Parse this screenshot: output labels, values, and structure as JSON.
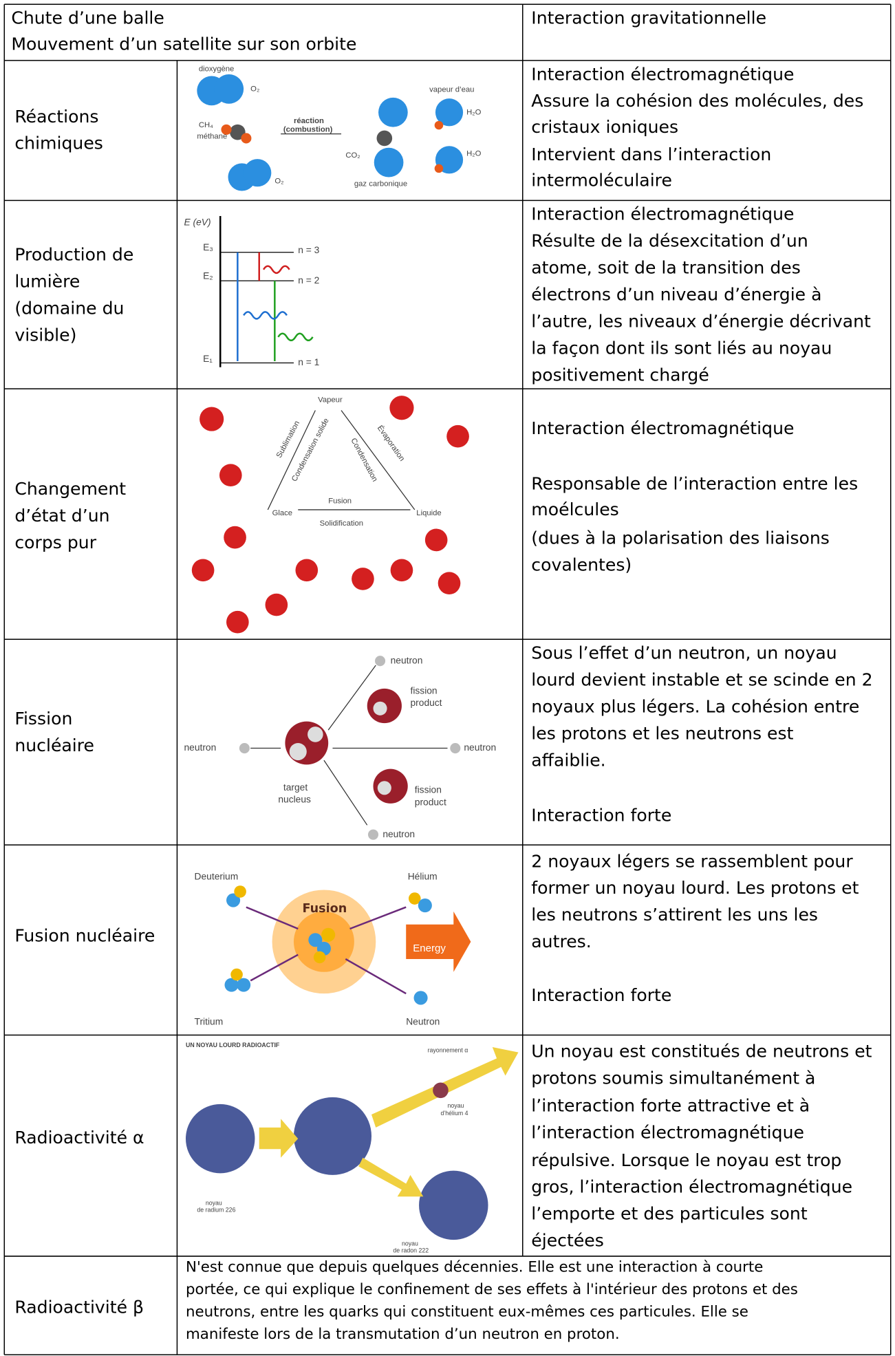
{
  "rows": [
    {
      "subject": [
        "Chute d’une balle",
        "Mouvement d’un satellite sur son orbite"
      ],
      "description": [
        "Interaction gravitationnelle"
      ]
    },
    {
      "subject": [
        "Réactions",
        "chimiques"
      ],
      "figure": [
        "dioxygène",
        "O₂",
        "CH₄",
        "méthane",
        "réaction",
        "(combustion)",
        "CO₂",
        "gaz carbonique",
        "vapeur d’eau",
        "H₂O",
        "H₂O",
        "O₂"
      ],
      "description": [
        "Interaction électromagnétique",
        "Assure la cohésion des molécules, des",
        "cristaux ioniques",
        "Intervient dans l’interaction",
        "intermoléculaire"
      ]
    },
    {
      "subject": [
        "Production de",
        "lumière",
        "(domaine du",
        "visible)"
      ],
      "figure": [
        "E (eV)",
        "E₃",
        "E₂",
        "E₁",
        "n = 3",
        "n = 2",
        "n = 1"
      ],
      "description": [
        "Interaction électromagnétique",
        "Résulte de la désexcitation d’un",
        "atome, soit de la transition des",
        "électrons d’un niveau d’énergie à",
        "l’autre, les niveaux d’énergie décrivant",
        "la façon dont ils sont liés au noyau",
        "positivement chargé"
      ]
    },
    {
      "subject": [
        "Changement",
        "d’état d’un",
        "corps pur"
      ],
      "figure": [
        "Vapeur",
        "Sublimation",
        "Condensation solide",
        "Condensation",
        "Évaporation",
        "Fusion",
        "Solidification",
        "Glace",
        "Liquide"
      ],
      "description": [
        "Interaction électromagnétique",
        "Responsable de l’interaction entre les",
        "moélcules",
        "(dues à la polarisation des liaisons",
        "covalentes)"
      ]
    },
    {
      "subject": [
        "Fission",
        "nucléaire"
      ],
      "figure": [
        "neutron",
        "fission",
        "product",
        "neutron",
        "neutron",
        "target",
        "nucleus",
        "fission",
        "product",
        "neutron"
      ],
      "description": [
        "Sous l’effet d’un neutron, un noyau",
        "lourd devient instable et se scinde en 2",
        "noyaux plus légers. La cohésion entre",
        "les protons et les neutrons est",
        "affaiblie.",
        "Interaction forte"
      ]
    },
    {
      "subject": [
        "Fusion nucléaire"
      ],
      "figure": [
        "Deuterium",
        "Hélium",
        "Fusion",
        "Energy",
        "Tritium",
        "Neutron"
      ],
      "description": [
        "2 noyaux légers se rassemblent pour",
        "former un noyau lourd. Les protons et",
        "les neutrons s’attirent les uns les",
        "autres.",
        "Interaction forte"
      ]
    },
    {
      "subject": [
        "Radioactivité α"
      ],
      "figure": [
        "UN NOYAU LOURD RADIOACTIF",
        "rayonnement α",
        "noyau",
        "d’hélium 4",
        "noyau",
        "de radium 226",
        "noyau",
        "de radon 222"
      ],
      "description": [
        "Un noyau est constitués de neutrons et",
        "protons soumis simultanément à",
        "l’interaction forte attractive et à",
        "l’interaction électromagnétique",
        "répulsive. Lorsque le noyau est trop",
        "gros, l’interaction électromagnétique",
        "l’emporte et des particules sont",
        "éjectées"
      ]
    },
    {
      "subject": [
        "Radioactivité β"
      ],
      "description": [
        "N'est connue que depuis quelques décennies. Elle est une interaction à courte",
        "portée, ce qui explique le confinement de ses effets à l'intérieur des protons et des",
        "neutrons, entre les quarks qui constituent eux-mêmes ces particules. Elle se",
        "manifeste lors de la transmutation d’un neutron en proton."
      ]
    }
  ]
}
